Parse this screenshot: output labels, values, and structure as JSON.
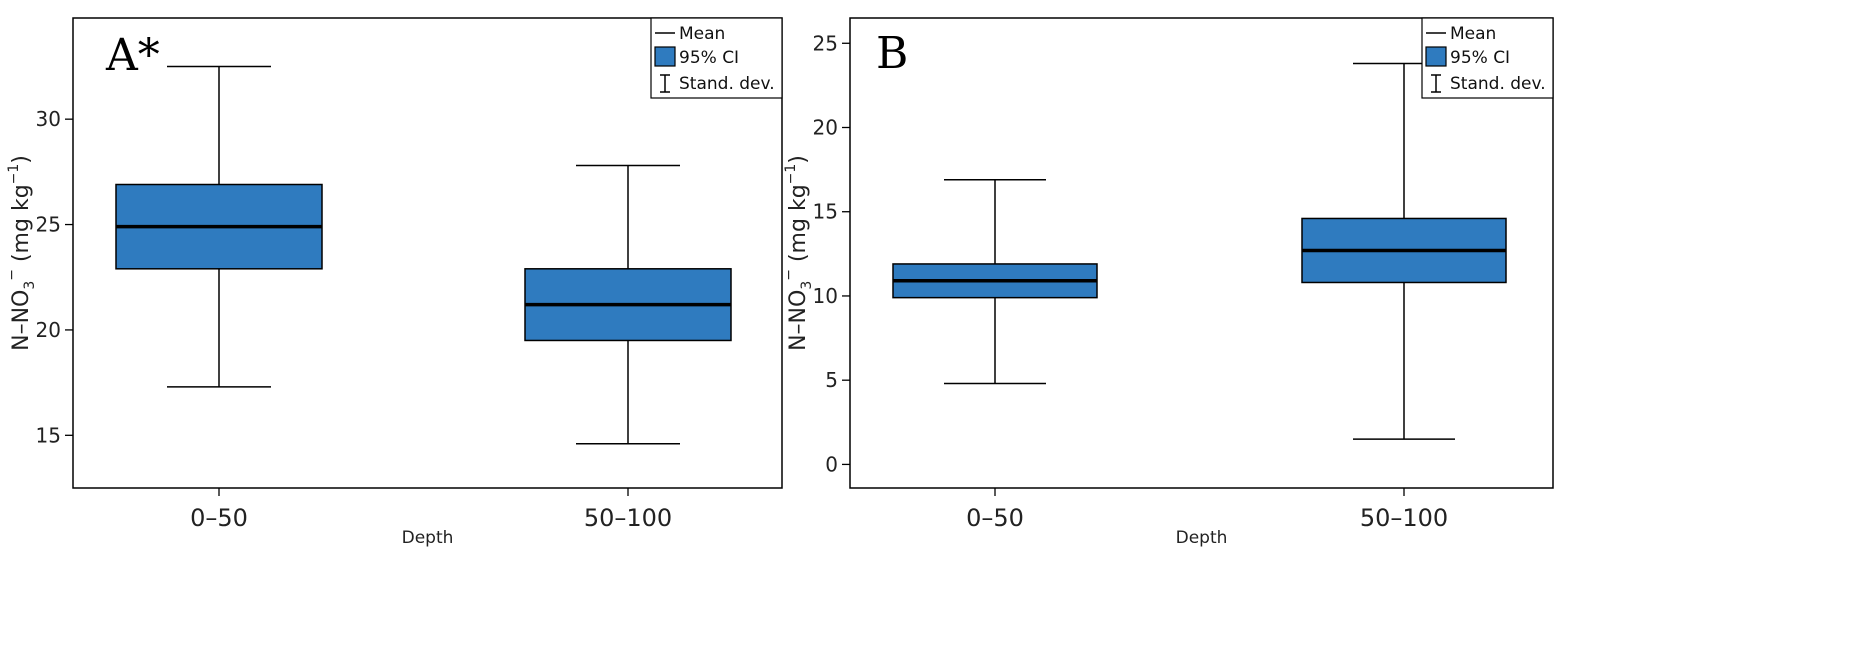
{
  "colors": {
    "box_fill": "#2f7bbf",
    "box_stroke": "#000000",
    "line": "#000000"
  },
  "legend": {
    "mean_label": "Mean",
    "ci_label": "95% CI",
    "sd_label": "Stand. dev."
  },
  "chart_data": [
    {
      "type": "boxplot",
      "panel": "A*",
      "xlabel": "Depth",
      "ylabel_main": "N–NO",
      "ylabel_sub": "3",
      "ylabel_sup": "−",
      "ylabel_unit": " (mg kg",
      "ylabel_unit_sup": "−1",
      "ylabel_close": ")",
      "ylim": [
        12.5,
        34.8
      ],
      "yticks": [
        15,
        20,
        25,
        30
      ],
      "legend_position": "top-right",
      "categories": [
        "0–50",
        "50–100"
      ],
      "series": [
        {
          "category": "0–50",
          "mean": 24.9,
          "ci_low": 22.9,
          "ci_high": 26.9,
          "sd_low": 17.3,
          "sd_high": 32.5
        },
        {
          "category": "50–100",
          "mean": 21.2,
          "ci_low": 19.5,
          "ci_high": 22.9,
          "sd_low": 14.6,
          "sd_high": 27.8
        }
      ]
    },
    {
      "type": "boxplot",
      "panel": "B",
      "xlabel": "Depth",
      "ylabel_main": "N–NO",
      "ylabel_sub": "3",
      "ylabel_sup": "−",
      "ylabel_unit": " (mg kg",
      "ylabel_unit_sup": "−1",
      "ylabel_close": ")",
      "ylim": [
        -1.4,
        26.5
      ],
      "yticks": [
        0,
        5,
        10,
        15,
        20,
        25
      ],
      "legend_position": "top-right",
      "categories": [
        "0–50",
        "50–100"
      ],
      "series": [
        {
          "category": "0–50",
          "mean": 10.9,
          "ci_low": 9.9,
          "ci_high": 11.9,
          "sd_low": 4.8,
          "sd_high": 16.9
        },
        {
          "category": "50–100",
          "mean": 12.7,
          "ci_low": 10.8,
          "ci_high": 14.6,
          "sd_low": 1.5,
          "sd_high": 23.8
        }
      ]
    }
  ]
}
